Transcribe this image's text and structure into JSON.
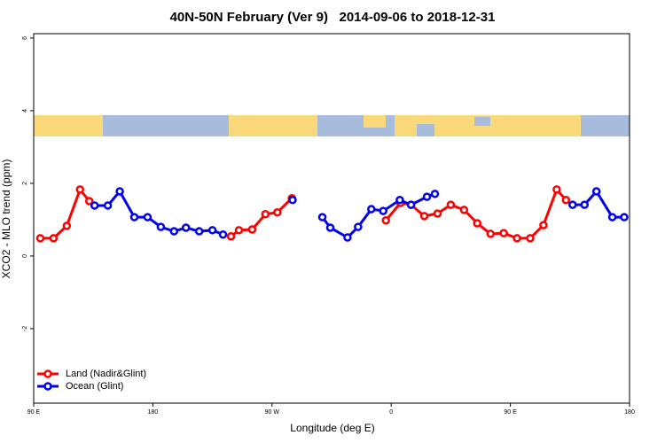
{
  "chart_data": {
    "type": "line",
    "title": "40N-50N February (Ver 9)   2014-09-06 to 2018-12-31",
    "x_label": "Longitude (deg E)",
    "y_label": "XCO2 - MLO trend (ppm)",
    "xlim": [
      90,
      540
    ],
    "ylim": [
      -4.05,
      6.12
    ],
    "xticks": [
      {
        "value": 90,
        "label": "90 E"
      },
      180,
      {
        "value": 270,
        "label": "90 W"
      },
      {
        "value": 360,
        "label": "0"
      },
      {
        "value": 450,
        "label": "90 E"
      },
      {
        "value": 540,
        "label": "180"
      }
    ],
    "yticks": [
      -2,
      0,
      2,
      4,
      6
    ],
    "legend": "bottom-left",
    "series": [
      {
        "name": "Land (Nadir&Glint)",
        "color": "#ff0000",
        "x": [
          95,
          105,
          115,
          125,
          132,
          null,
          239,
          245,
          255,
          265,
          274,
          285,
          null,
          356,
          367,
          375,
          385,
          395,
          405,
          415,
          425,
          435,
          445,
          455,
          465,
          475,
          485,
          492
        ],
        "values": [
          0.49,
          0.49,
          0.83,
          1.83,
          1.51,
          null,
          0.54,
          0.71,
          0.73,
          1.15,
          1.2,
          1.59,
          null,
          0.98,
          1.46,
          1.41,
          1.1,
          1.17,
          1.41,
          1.27,
          0.9,
          0.61,
          0.63,
          0.49,
          0.49,
          0.85,
          1.83,
          1.54
        ]
      },
      {
        "name": "Ocean (Glint)",
        "color": "#0000ee",
        "x": [
          136,
          146,
          155,
          166,
          176,
          186,
          196,
          205,
          215,
          225,
          233,
          null,
          285.5,
          null,
          308,
          314,
          327,
          335,
          345,
          354,
          366.5,
          375,
          387,
          393,
          null,
          497,
          506,
          515,
          527,
          536
        ],
        "values": [
          1.39,
          1.39,
          1.78,
          1.07,
          1.07,
          0.8,
          0.68,
          0.78,
          0.68,
          0.71,
          0.59,
          null,
          1.54,
          null,
          1.07,
          0.78,
          0.51,
          0.8,
          1.29,
          1.24,
          1.54,
          1.41,
          1.63,
          1.71,
          null,
          1.41,
          1.41,
          1.78,
          1.07,
          1.07
        ]
      }
    ]
  }
}
